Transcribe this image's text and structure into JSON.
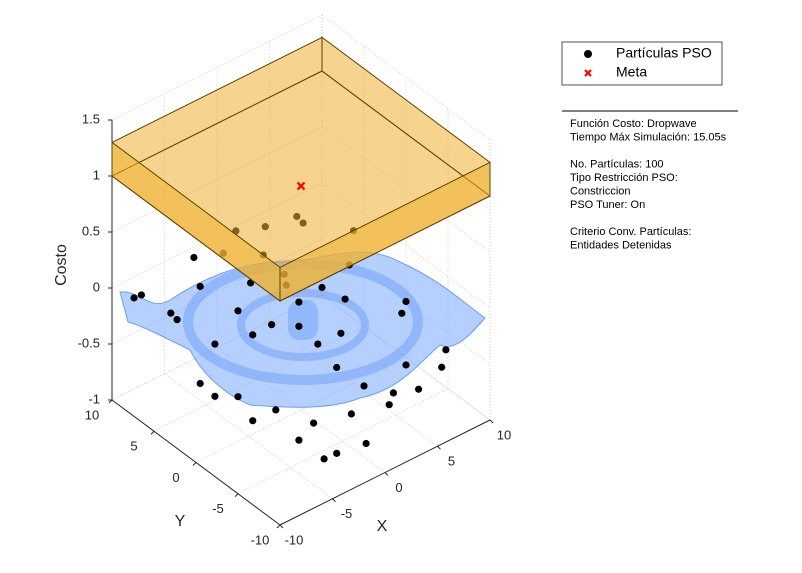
{
  "chart_data": {
    "type": "scatter3d",
    "xlabel": "X",
    "ylabel": "Y",
    "zlabel": "Costo",
    "xlim": [
      -10,
      10
    ],
    "ylim": [
      -10,
      10
    ],
    "zlim": [
      -1,
      1.5
    ],
    "xticks": [
      -10,
      -5,
      0,
      5,
      10
    ],
    "yticks": [
      -10,
      -5,
      0,
      5,
      10
    ],
    "zticks": [
      -1,
      -0.5,
      0,
      0.5,
      1,
      1.5
    ],
    "grid": true,
    "legend_position": "northeast-outside",
    "constraint_box": {
      "xlim": [
        -10,
        10
      ],
      "ylim": [
        -10,
        10
      ],
      "zlim": [
        1,
        1.3
      ],
      "color": "#f0b030"
    },
    "series": [
      {
        "name": "Partículas PSO",
        "color": "#000000",
        "marker": "circle",
        "x": [
          -9.5,
          -8,
          -7,
          -6,
          -5,
          -4,
          -3,
          -2,
          -1,
          0,
          1,
          2,
          3,
          -8,
          -6,
          -4,
          -2,
          0,
          2,
          4,
          -7,
          -5,
          -3,
          -1,
          1,
          3,
          5,
          7,
          9,
          8,
          6,
          4,
          10,
          9,
          7,
          -2,
          0,
          2,
          1,
          -1,
          -3,
          5,
          3,
          6,
          -9,
          0,
          -5,
          2
        ],
        "y": [
          8,
          9,
          6,
          8,
          4,
          7,
          9,
          5,
          8,
          6,
          9,
          7,
          4,
          2,
          0,
          -2,
          -4,
          -6,
          -8,
          -9,
          -3,
          -6,
          -8,
          -9,
          -3,
          -1,
          1,
          3,
          5,
          -2,
          -5,
          -6,
          0,
          -6,
          -8,
          1,
          2,
          0,
          3,
          -1,
          2,
          6,
          8,
          8,
          -1,
          -2,
          -9,
          -5
        ],
        "z": [
          0,
          -0.1,
          -0.2,
          -0.3,
          -0.4,
          -0.1,
          0,
          -0.3,
          0,
          -0.2,
          0.05,
          -0.1,
          -0.4,
          -0.5,
          -0.6,
          -0.7,
          -0.8,
          -0.7,
          -0.6,
          -0.5,
          -0.6,
          -0.7,
          -0.8,
          -0.75,
          -0.5,
          -0.4,
          -0.3,
          -0.2,
          -0.1,
          -0.4,
          -0.6,
          -0.7,
          -0.5,
          -0.55,
          -0.5,
          -0.2,
          0.1,
          0,
          -0.1,
          -0.15,
          -0.3,
          0.1,
          0.05,
          0,
          -0.4,
          -0.3,
          -0.7,
          -0.6
        ]
      },
      {
        "name": "Meta",
        "color": "#ff0000",
        "marker": "x",
        "x": [
          0
        ],
        "y": [
          0
        ],
        "z": [
          1
        ]
      }
    ],
    "annotations": [
      [
        "Función Costo: Dropwave",
        "Tiempo Máx Simulación: 15.05s"
      ],
      [
        "No. Partículas: 100",
        "Tipo Restricción PSO:",
        "Constriccion",
        "PSO Tuner: On"
      ],
      [
        "Criterio Conv. Partículas:",
        "Entidades Detenidas"
      ]
    ]
  }
}
